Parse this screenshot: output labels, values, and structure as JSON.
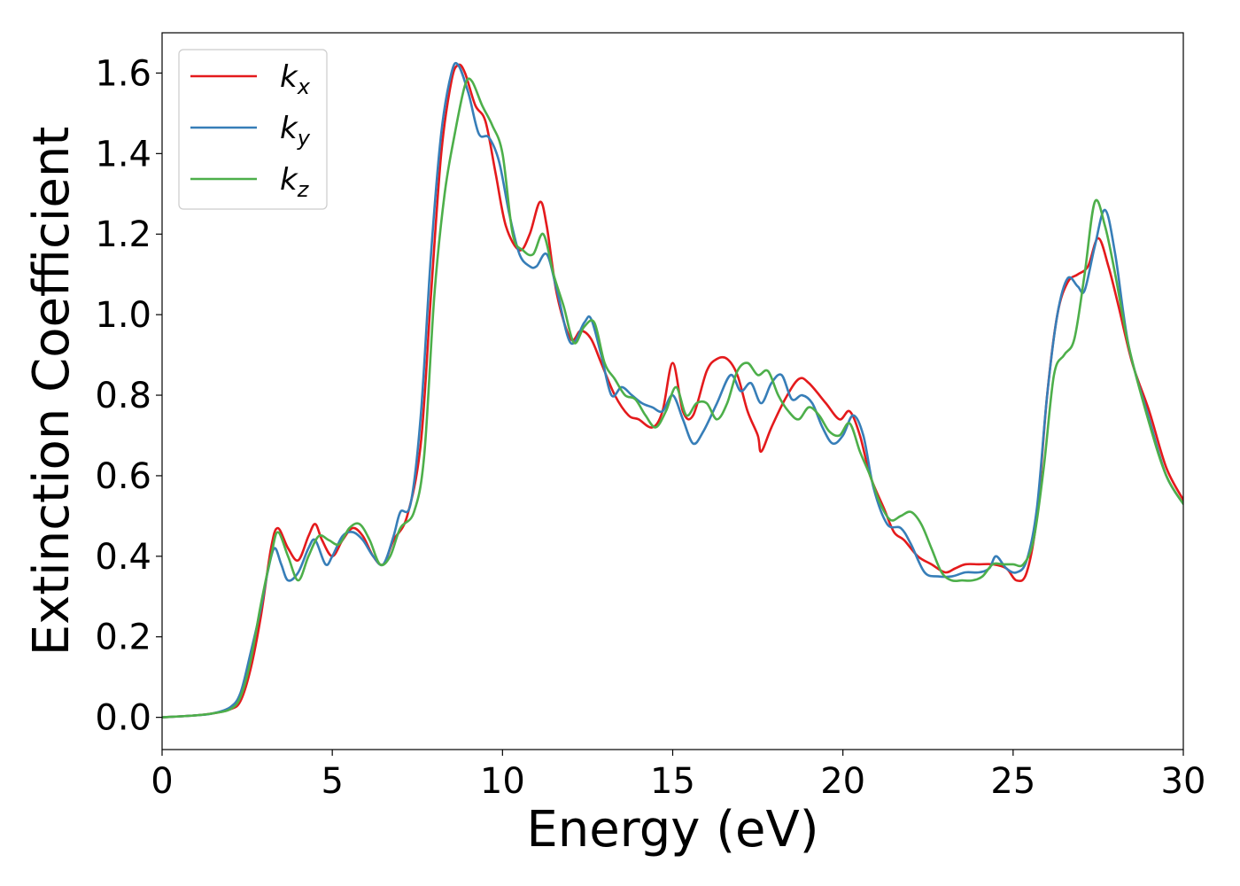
{
  "chart_data": {
    "type": "line",
    "title": "",
    "xlabel": "Energy (eV)",
    "ylabel": "Extinction Coefficient",
    "xlim": [
      0,
      30
    ],
    "ylim": [
      -0.08,
      1.7
    ],
    "xticks": [
      0,
      5,
      10,
      15,
      20,
      25,
      30
    ],
    "xtick_labels": [
      "0",
      "5",
      "10",
      "15",
      "20",
      "25",
      "30"
    ],
    "yticks": [
      0.0,
      0.2,
      0.4,
      0.6,
      0.8,
      1.0,
      1.2,
      1.4,
      1.6
    ],
    "ytick_labels": [
      "0.0",
      "0.2",
      "0.4",
      "0.6",
      "0.8",
      "1.0",
      "1.2",
      "1.4",
      "1.6"
    ],
    "grid": false,
    "legend_position": "top-left",
    "series": [
      {
        "name": "k_x",
        "label_main": "k",
        "label_sub": "x",
        "color": "#e41a1c",
        "x": [
          0,
          1,
          1.5,
          2.0,
          2.3,
          2.6,
          2.9,
          3.2,
          3.4,
          3.7,
          4.0,
          4.3,
          4.5,
          4.7,
          5.0,
          5.3,
          5.6,
          5.9,
          6.2,
          6.5,
          6.8,
          7.2,
          7.6,
          7.9,
          8.2,
          8.5,
          8.7,
          8.9,
          9.2,
          9.5,
          9.8,
          10.1,
          10.5,
          10.8,
          11.1,
          11.3,
          11.6,
          12.0,
          12.3,
          12.6,
          12.9,
          13.3,
          13.7,
          14.0,
          14.4,
          14.7,
          15.0,
          15.3,
          15.6,
          16.0,
          16.3,
          16.6,
          16.9,
          17.2,
          17.5,
          17.6,
          17.9,
          18.3,
          18.7,
          19.0,
          19.5,
          19.9,
          20.2,
          20.5,
          20.8,
          21.2,
          21.5,
          21.8,
          22.2,
          22.6,
          23.0,
          23.3,
          23.6,
          24.0,
          24.4,
          24.8,
          25.1,
          25.4,
          25.7,
          26.0,
          26.3,
          26.6,
          26.9,
          27.2,
          27.5,
          27.8,
          28.1,
          28.5,
          29.0,
          29.5,
          30.0
        ],
        "y": [
          0.0,
          0.005,
          0.01,
          0.02,
          0.04,
          0.12,
          0.25,
          0.42,
          0.47,
          0.42,
          0.39,
          0.45,
          0.48,
          0.44,
          0.4,
          0.44,
          0.47,
          0.45,
          0.4,
          0.38,
          0.44,
          0.5,
          0.68,
          1.05,
          1.4,
          1.58,
          1.62,
          1.6,
          1.52,
          1.48,
          1.35,
          1.22,
          1.16,
          1.2,
          1.28,
          1.22,
          1.05,
          0.94,
          0.96,
          0.94,
          0.88,
          0.8,
          0.75,
          0.74,
          0.72,
          0.76,
          0.88,
          0.76,
          0.75,
          0.86,
          0.89,
          0.89,
          0.85,
          0.76,
          0.7,
          0.66,
          0.72,
          0.79,
          0.84,
          0.83,
          0.78,
          0.74,
          0.76,
          0.7,
          0.6,
          0.52,
          0.46,
          0.44,
          0.4,
          0.38,
          0.36,
          0.37,
          0.38,
          0.38,
          0.38,
          0.37,
          0.34,
          0.36,
          0.5,
          0.8,
          1.0,
          1.08,
          1.1,
          1.12,
          1.19,
          1.12,
          1.02,
          0.88,
          0.76,
          0.62,
          0.54
        ]
      },
      {
        "name": "k_y",
        "label_main": "k",
        "label_sub": "y",
        "color": "#377eb8",
        "x": [
          0,
          1,
          1.5,
          2.0,
          2.3,
          2.6,
          2.9,
          3.1,
          3.3,
          3.5,
          3.7,
          4.0,
          4.3,
          4.5,
          4.8,
          5.0,
          5.3,
          5.6,
          5.9,
          6.2,
          6.5,
          6.8,
          7.0,
          7.3,
          7.6,
          7.9,
          8.2,
          8.5,
          8.7,
          9.0,
          9.3,
          9.6,
          9.9,
          10.2,
          10.5,
          10.8,
          11.0,
          11.3,
          11.6,
          12.0,
          12.4,
          12.6,
          12.9,
          13.2,
          13.5,
          13.8,
          14.1,
          14.4,
          14.7,
          15.0,
          15.3,
          15.6,
          15.9,
          16.3,
          16.7,
          17.0,
          17.3,
          17.6,
          17.9,
          18.2,
          18.5,
          18.8,
          19.1,
          19.4,
          19.7,
          20.0,
          20.3,
          20.6,
          20.9,
          21.3,
          21.7,
          22.0,
          22.4,
          22.8,
          23.2,
          23.6,
          24.0,
          24.3,
          24.5,
          24.8,
          25.1,
          25.4,
          25.7,
          26.0,
          26.3,
          26.6,
          26.9,
          27.1,
          27.4,
          27.7,
          28.0,
          28.4,
          29.0,
          29.5,
          30.0
        ],
        "y": [
          0.0,
          0.005,
          0.01,
          0.025,
          0.06,
          0.16,
          0.27,
          0.36,
          0.42,
          0.38,
          0.34,
          0.36,
          0.42,
          0.44,
          0.38,
          0.4,
          0.45,
          0.46,
          0.44,
          0.4,
          0.38,
          0.45,
          0.51,
          0.53,
          0.75,
          1.15,
          1.45,
          1.6,
          1.62,
          1.55,
          1.45,
          1.44,
          1.38,
          1.25,
          1.15,
          1.12,
          1.12,
          1.15,
          1.06,
          0.93,
          0.98,
          0.99,
          0.9,
          0.8,
          0.82,
          0.8,
          0.78,
          0.77,
          0.76,
          0.8,
          0.74,
          0.68,
          0.71,
          0.78,
          0.85,
          0.81,
          0.83,
          0.78,
          0.83,
          0.85,
          0.79,
          0.8,
          0.78,
          0.72,
          0.68,
          0.7,
          0.75,
          0.7,
          0.57,
          0.48,
          0.47,
          0.43,
          0.36,
          0.35,
          0.35,
          0.36,
          0.36,
          0.37,
          0.4,
          0.37,
          0.36,
          0.39,
          0.52,
          0.8,
          1.0,
          1.09,
          1.07,
          1.06,
          1.17,
          1.26,
          1.15,
          0.92,
          0.74,
          0.6,
          0.53
        ]
      },
      {
        "name": "k_z",
        "label_main": "k",
        "label_sub": "z",
        "color": "#4daf4a",
        "x": [
          0,
          1,
          1.5,
          2.0,
          2.3,
          2.6,
          2.9,
          3.2,
          3.4,
          3.7,
          4.0,
          4.3,
          4.6,
          4.9,
          5.2,
          5.5,
          5.8,
          6.1,
          6.4,
          6.7,
          7.0,
          7.4,
          7.7,
          8.0,
          8.3,
          8.6,
          8.9,
          9.1,
          9.4,
          9.7,
          10.0,
          10.3,
          10.6,
          10.9,
          11.2,
          11.5,
          11.8,
          12.1,
          12.4,
          12.7,
          13.0,
          13.3,
          13.6,
          13.9,
          14.2,
          14.5,
          14.8,
          15.1,
          15.4,
          15.7,
          16.0,
          16.3,
          16.6,
          16.9,
          17.2,
          17.5,
          17.8,
          18.1,
          18.4,
          18.7,
          19.0,
          19.3,
          19.6,
          19.9,
          20.2,
          20.5,
          20.8,
          21.1,
          21.4,
          21.7,
          22.0,
          22.3,
          22.6,
          22.9,
          23.2,
          23.5,
          23.8,
          24.1,
          24.4,
          24.7,
          25.0,
          25.3,
          25.6,
          25.9,
          26.2,
          26.5,
          26.8,
          27.1,
          27.4,
          27.7,
          28.0,
          28.4,
          29.0,
          29.5,
          30.0
        ],
        "y": [
          0.0,
          0.005,
          0.01,
          0.02,
          0.05,
          0.14,
          0.28,
          0.4,
          0.46,
          0.4,
          0.34,
          0.4,
          0.45,
          0.44,
          0.43,
          0.47,
          0.48,
          0.44,
          0.38,
          0.4,
          0.47,
          0.51,
          0.65,
          1.05,
          1.3,
          1.45,
          1.57,
          1.58,
          1.52,
          1.47,
          1.4,
          1.2,
          1.16,
          1.15,
          1.2,
          1.1,
          1.02,
          0.93,
          0.97,
          0.98,
          0.88,
          0.84,
          0.8,
          0.79,
          0.75,
          0.72,
          0.76,
          0.82,
          0.75,
          0.78,
          0.78,
          0.74,
          0.78,
          0.86,
          0.88,
          0.85,
          0.86,
          0.8,
          0.76,
          0.74,
          0.77,
          0.75,
          0.71,
          0.7,
          0.73,
          0.66,
          0.6,
          0.53,
          0.49,
          0.5,
          0.51,
          0.48,
          0.42,
          0.36,
          0.34,
          0.34,
          0.34,
          0.35,
          0.38,
          0.38,
          0.38,
          0.38,
          0.44,
          0.62,
          0.85,
          0.9,
          0.94,
          1.1,
          1.28,
          1.22,
          1.1,
          0.92,
          0.73,
          0.6,
          0.53
        ]
      }
    ]
  }
}
